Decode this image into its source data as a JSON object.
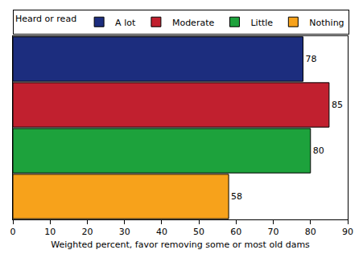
{
  "chart_data": {
    "type": "bar",
    "orientation": "horizontal",
    "categories": [
      "A lot",
      "Moderate",
      "Little",
      "Nothing"
    ],
    "values": [
      78,
      85,
      80,
      58
    ],
    "colors": [
      "#1c2d7e",
      "#c1202f",
      "#1da23c",
      "#f7a21b"
    ],
    "x_label": "Weighted percent, favor removing some or most old dams",
    "legend_title": "Heard or read",
    "legend": "top",
    "xlim": [
      0,
      90
    ],
    "xticks": [
      0,
      10,
      20,
      30,
      40,
      50,
      60,
      70,
      80,
      90
    ],
    "grid": false,
    "data_labels": true,
    "tick_labels": "x"
  }
}
